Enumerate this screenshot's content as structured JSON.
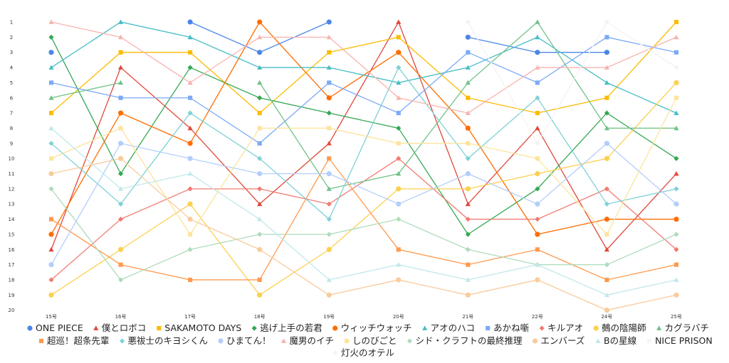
{
  "chart_data": {
    "type": "line",
    "title": "",
    "xlabel": "",
    "ylabel": "",
    "y_axis_reversed": true,
    "ylim": [
      1,
      20
    ],
    "y_ticks": [
      "1",
      "2",
      "3",
      "4",
      "5",
      "6",
      "7",
      "8",
      "9",
      "10",
      "11",
      "12",
      "13",
      "14",
      "15",
      "16",
      "17",
      "18",
      "19",
      "20"
    ],
    "categories": [
      "15号",
      "16号",
      "17号",
      "18号",
      "19号",
      "20号",
      "21号",
      "22号",
      "24号",
      "25号"
    ],
    "grid": false,
    "legend_position": "bottom",
    "series": [
      {
        "name": "ONE PIECE",
        "color": "#4a86e8",
        "marker": "circle",
        "values": [
          3,
          null,
          1,
          3,
          1,
          null,
          2,
          3,
          3,
          null
        ]
      },
      {
        "name": "僕とロボコ",
        "color": "#e0483a",
        "marker": "triangle",
        "values": [
          16,
          4,
          8,
          13,
          9,
          1,
          13,
          8,
          16,
          11
        ]
      },
      {
        "name": "SAKAMOTO DAYS",
        "color": "#fbbc04",
        "marker": "square",
        "values": [
          7,
          3,
          3,
          7,
          3,
          2,
          6,
          7,
          6,
          1
        ]
      },
      {
        "name": "逃げ上手の若君",
        "color": "#34a853",
        "marker": "diamond",
        "values": [
          2,
          11,
          4,
          6,
          7,
          8,
          15,
          12,
          7,
          10
        ]
      },
      {
        "name": "ウィッチウォッチ",
        "color": "#ff6d00",
        "marker": "circle",
        "values": [
          15,
          7,
          9,
          1,
          6,
          3,
          8,
          15,
          14,
          14
        ]
      },
      {
        "name": "アオのハコ",
        "color": "#46bdc6",
        "marker": "triangle",
        "values": [
          4,
          1,
          2,
          4,
          4,
          5,
          4,
          2,
          5,
          7
        ]
      },
      {
        "name": "あかね噺",
        "color": "#7baaf7",
        "marker": "square",
        "values": [
          5,
          6,
          6,
          9,
          5,
          7,
          3,
          5,
          2,
          3
        ]
      },
      {
        "name": "キルアオ",
        "color": "#f07b72",
        "marker": "diamond",
        "values": [
          18,
          14,
          12,
          12,
          13,
          10,
          14,
          14,
          12,
          16
        ]
      },
      {
        "name": "鵺の陰陽師",
        "color": "#fcd04f",
        "marker": "circle",
        "values": [
          19,
          16,
          13,
          19,
          16,
          12,
          12,
          11,
          10,
          5
        ]
      },
      {
        "name": "カグラバチ",
        "color": "#71c287",
        "marker": "triangle",
        "values": [
          6,
          5,
          null,
          5,
          12,
          11,
          5,
          1,
          8,
          8
        ]
      },
      {
        "name": "超巡！超条先輩",
        "color": "#ff994d",
        "marker": "square",
        "values": [
          14,
          17,
          18,
          18,
          10,
          16,
          17,
          16,
          18,
          17
        ]
      },
      {
        "name": "悪祓士のキヨシくん",
        "color": "#7ed1d7",
        "marker": "diamond",
        "values": [
          9,
          13,
          7,
          10,
          14,
          4,
          10,
          6,
          13,
          12
        ]
      },
      {
        "name": "ひまてん！",
        "color": "#b3cefb",
        "marker": "circle",
        "values": [
          17,
          9,
          10,
          11,
          11,
          13,
          11,
          13,
          9,
          13
        ]
      },
      {
        "name": "魔男のイチ",
        "color": "#f7b4ae",
        "marker": "triangle",
        "values": [
          1,
          2,
          5,
          2,
          2,
          6,
          7,
          4,
          4,
          2
        ]
      },
      {
        "name": "しのびごと",
        "color": "#fde49b",
        "marker": "square",
        "values": [
          10,
          8,
          15,
          8,
          8,
          9,
          9,
          10,
          15,
          6
        ]
      },
      {
        "name": "シド・クラフトの最終推理",
        "color": "#aedcba",
        "marker": "diamond",
        "values": [
          12,
          18,
          16,
          15,
          15,
          14,
          16,
          17,
          17,
          15
        ]
      },
      {
        "name": "エンバーズ",
        "color": "#f9cb9c",
        "marker": "circle",
        "values": [
          11,
          10,
          14,
          16,
          19,
          18,
          19,
          18,
          20,
          19
        ]
      },
      {
        "name": "Bの星線",
        "color": "#c1e8eb",
        "marker": "triangle",
        "values": [
          8,
          12,
          11,
          14,
          18,
          17,
          18,
          17,
          19,
          18
        ]
      },
      {
        "name": "NICE PRISON",
        "color": "#f5f5f5",
        "marker": "square",
        "values": [
          null,
          null,
          null,
          null,
          null,
          null,
          null,
          null,
          null,
          null
        ]
      },
      {
        "name": "灯火のオテル",
        "color": "#f3f3f3",
        "marker": "diamond",
        "values": [
          null,
          null,
          null,
          null,
          null,
          null,
          1,
          9,
          1,
          4
        ]
      }
    ]
  }
}
